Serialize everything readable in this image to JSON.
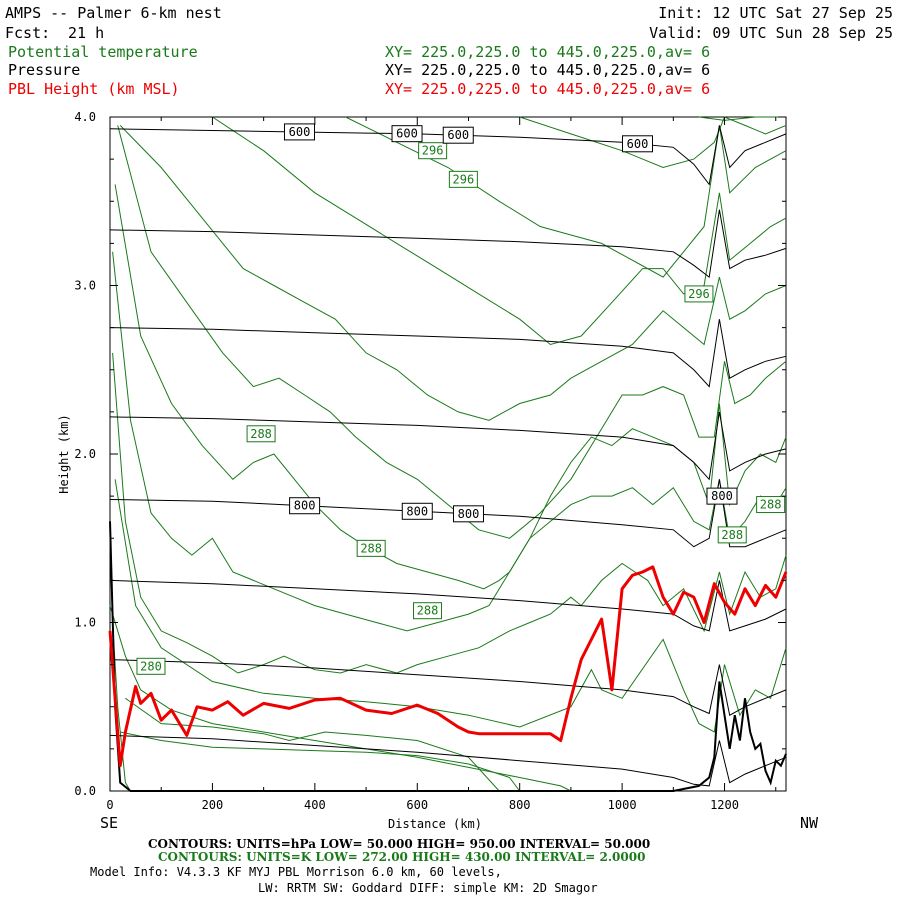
{
  "header": {
    "title": "AMPS -- Palmer 6-km nest",
    "forecast_label": "Fcst:",
    "forecast_hours": "21 h",
    "init": "Init: 12 UTC Sat 27 Sep 25",
    "valid": "Valid: 09 UTC Sun 28 Sep 25",
    "fields": [
      {
        "name": "Potential temperature",
        "xy": "XY= 225.0,225.0 to 445.0,225.0,av=  6",
        "color": "#1a7a1a"
      },
      {
        "name": "Pressure",
        "xy": "XY= 225.0,225.0 to 445.0,225.0,av=  6",
        "color": "#000000"
      },
      {
        "name": "PBL Height (km MSL)",
        "xy": "XY= 225.0,225.0 to 445.0,225.0,av=  6",
        "color": "#ee0000"
      }
    ]
  },
  "footer": {
    "pressure_contours": "CONTOURS:  UNITS=hPa  LOW=  50.000       HIGH=  950.00       INTERVAL=   50.000",
    "theta_contours": "CONTOURS:  UNITS=K  LOW=  272.00       HIGH=  430.00       INTERVAL=   2.0000",
    "model_info_1": "Model Info: V4.3.3   KF      MYJ PBL  Morrison            6.0 km,  60 levels,",
    "model_info_2": "LW: RRTM SW: Goddard DIFF: simple KM: 2D Smagor"
  },
  "chart_data": {
    "type": "line",
    "xlabel": "Distance (km)",
    "ylabel": "Height (km)",
    "x_end_labels": {
      "left": "SE",
      "right": "NW"
    },
    "xlim": [
      0,
      1320
    ],
    "ylim": [
      0.0,
      4.0
    ],
    "xticks": [
      0,
      200,
      400,
      600,
      800,
      1000,
      1200
    ],
    "yticks": [
      "0.0",
      "1.0",
      "2.0",
      "3.0",
      "4.0"
    ],
    "colors": {
      "theta": "#1a7a1a",
      "pressure": "#000000",
      "pbl": "#ee0000",
      "terrain": "#000000"
    },
    "series": [
      {
        "name": "PBL Height (km MSL)",
        "x": [
          0,
          20,
          30,
          50,
          60,
          80,
          100,
          120,
          150,
          170,
          200,
          230,
          260,
          300,
          350,
          400,
          450,
          500,
          550,
          600,
          640,
          680,
          700,
          720,
          760,
          800,
          860,
          880,
          900,
          920,
          960,
          980,
          1000,
          1020,
          1040,
          1060,
          1080,
          1100,
          1120,
          1140,
          1160,
          1180,
          1200,
          1220,
          1240,
          1260,
          1280,
          1300,
          1320
        ],
        "y": [
          0.95,
          0.15,
          0.35,
          0.62,
          0.52,
          0.58,
          0.42,
          0.48,
          0.33,
          0.5,
          0.48,
          0.53,
          0.45,
          0.52,
          0.49,
          0.54,
          0.55,
          0.48,
          0.46,
          0.51,
          0.46,
          0.38,
          0.35,
          0.34,
          0.34,
          0.34,
          0.34,
          0.3,
          0.55,
          0.78,
          1.02,
          0.6,
          1.2,
          1.28,
          1.3,
          1.33,
          1.15,
          1.05,
          1.18,
          1.15,
          1.0,
          1.23,
          1.12,
          1.05,
          1.2,
          1.1,
          1.22,
          1.15,
          1.3
        ]
      }
    ],
    "pressure_contours": [
      {
        "level": 600,
        "x": [
          0,
          200,
          400,
          600,
          800,
          1000,
          1100,
          1140,
          1170,
          1190,
          1210,
          1240,
          1280,
          1320
        ],
        "y": [
          3.93,
          3.92,
          3.91,
          3.9,
          3.88,
          3.85,
          3.82,
          3.72,
          3.6,
          3.95,
          3.7,
          3.8,
          3.85,
          3.9
        ],
        "labels_x": [
          370,
          580,
          680,
          1030
        ]
      },
      {
        "level": 650,
        "x": [
          0,
          200,
          400,
          600,
          800,
          1000,
          1100,
          1140,
          1170,
          1190,
          1210,
          1240,
          1280,
          1320
        ],
        "y": [
          3.33,
          3.32,
          3.3,
          3.28,
          3.26,
          3.23,
          3.2,
          3.12,
          3.05,
          3.45,
          3.1,
          3.15,
          3.18,
          3.22
        ],
        "labels_x": []
      },
      {
        "level": 700,
        "x": [
          0,
          200,
          400,
          600,
          800,
          1000,
          1100,
          1140,
          1170,
          1190,
          1210,
          1240,
          1280,
          1320
        ],
        "y": [
          2.75,
          2.74,
          2.72,
          2.7,
          2.68,
          2.64,
          2.6,
          2.5,
          2.4,
          2.8,
          2.45,
          2.5,
          2.55,
          2.58
        ],
        "labels_x": []
      },
      {
        "level": 750,
        "x": [
          0,
          200,
          400,
          600,
          800,
          1000,
          1100,
          1140,
          1170,
          1190,
          1210,
          1240,
          1280,
          1320
        ],
        "y": [
          2.22,
          2.21,
          2.19,
          2.17,
          2.14,
          2.1,
          2.05,
          1.95,
          1.85,
          2.25,
          1.9,
          1.95,
          2.0,
          2.03
        ],
        "labels_x": []
      },
      {
        "level": 800,
        "x": [
          0,
          200,
          400,
          600,
          800,
          1000,
          1100,
          1140,
          1170,
          1190,
          1210,
          1240,
          1280,
          1320
        ],
        "y": [
          1.73,
          1.72,
          1.69,
          1.66,
          1.63,
          1.58,
          1.55,
          1.45,
          1.5,
          1.85,
          1.45,
          1.45,
          1.5,
          1.55
        ],
        "labels_x": [
          380,
          600,
          700,
          1195
        ]
      },
      {
        "level": 850,
        "x": [
          0,
          200,
          400,
          600,
          800,
          1000,
          1100,
          1140,
          1170,
          1190,
          1210,
          1240,
          1280,
          1320
        ],
        "y": [
          1.25,
          1.23,
          1.2,
          1.17,
          1.13,
          1.08,
          1.05,
          0.98,
          0.95,
          1.25,
          0.95,
          0.98,
          1.02,
          1.08
        ],
        "labels_x": []
      },
      {
        "level": 900,
        "x": [
          0,
          200,
          400,
          600,
          800,
          1000,
          1100,
          1140,
          1170,
          1190,
          1210,
          1240,
          1280,
          1320
        ],
        "y": [
          0.78,
          0.76,
          0.73,
          0.69,
          0.65,
          0.6,
          0.56,
          0.5,
          0.46,
          0.75,
          0.45,
          0.5,
          0.55,
          0.6
        ],
        "labels_x": []
      },
      {
        "level": 950,
        "x": [
          0,
          200,
          400,
          600,
          800,
          1000,
          1100,
          1140,
          1170,
          1190,
          1210,
          1240,
          1280,
          1320
        ],
        "y": [
          0.33,
          0.31,
          0.27,
          0.23,
          0.18,
          0.13,
          0.08,
          0.04,
          0.03,
          0.3,
          0.05,
          0.1,
          0.15,
          0.2
        ],
        "labels_x": []
      }
    ],
    "terrain": {
      "x": [
        0,
        10,
        20,
        40,
        100,
        1100,
        1150,
        1170,
        1180,
        1190,
        1200,
        1210,
        1220,
        1230,
        1240,
        1250,
        1260,
        1270,
        1280,
        1290,
        1300,
        1310,
        1320
      ],
      "y": [
        1.6,
        0.5,
        0.05,
        0.0,
        0.0,
        0.0,
        0.03,
        0.08,
        0.2,
        0.65,
        0.45,
        0.25,
        0.45,
        0.3,
        0.55,
        0.35,
        0.25,
        0.28,
        0.12,
        0.05,
        0.18,
        0.15,
        0.22
      ]
    },
    "theta_contours": [
      {
        "x": [
          0,
          5,
          15,
          30,
          40
        ],
        "y": [
          1.5,
          1.0,
          0.5,
          0.05,
          0.0
        ]
      },
      {
        "x": [
          0,
          30,
          60,
          120,
          200,
          300,
          400,
          500,
          600,
          700,
          800,
          880,
          900
        ],
        "y": [
          1.1,
          0.8,
          0.6,
          0.48,
          0.4,
          0.35,
          0.3,
          0.25,
          0.2,
          0.14,
          0.08,
          0.03,
          0.0
        ]
      },
      {
        "x": [
          20,
          100,
          200,
          300,
          400,
          500,
          600,
          700,
          780,
          800
        ],
        "y": [
          0.35,
          0.3,
          0.26,
          0.25,
          0.24,
          0.23,
          0.21,
          0.16,
          0.08,
          0.0
        ]
      },
      {
        "x": [
          30,
          100,
          200,
          300,
          350,
          420,
          500,
          600,
          700,
          760
        ],
        "y": [
          0.55,
          0.4,
          0.38,
          0.34,
          0.3,
          0.35,
          0.33,
          0.3,
          0.2,
          0.0
        ]
      },
      {
        "x": [
          10,
          50,
          100,
          200,
          300,
          400,
          500,
          600,
          700,
          800,
          900,
          940,
          960,
          1000,
          1080,
          1120,
          1150,
          1180,
          1200,
          1230,
          1260,
          1290,
          1320
        ],
        "y": [
          1.85,
          1.1,
          0.85,
          0.65,
          0.58,
          0.55,
          0.53,
          0.5,
          0.45,
          0.38,
          0.5,
          0.72,
          0.6,
          0.55,
          0.9,
          0.6,
          0.4,
          0.35,
          0.75,
          0.45,
          0.6,
          0.55,
          0.85
        ]
      },
      {
        "x": [
          5,
          30,
          60,
          100,
          150,
          200,
          250,
          300,
          340,
          400,
          450,
          500,
          560,
          600,
          660,
          720,
          780,
          820,
          860,
          900,
          920,
          960,
          1000,
          1050,
          1080,
          1120,
          1160,
          1190,
          1210,
          1240,
          1270,
          1300,
          1320
        ],
        "y": [
          2.6,
          1.6,
          1.15,
          0.95,
          0.88,
          0.8,
          0.7,
          0.75,
          0.8,
          0.72,
          0.7,
          0.75,
          0.7,
          0.75,
          0.8,
          0.85,
          0.95,
          1.0,
          1.05,
          1.15,
          1.1,
          1.25,
          1.35,
          1.25,
          1.1,
          1.2,
          0.95,
          1.3,
          1.05,
          1.3,
          1.15,
          1.2,
          1.4
        ]
      },
      {
        "x": [
          5,
          40,
          80,
          120,
          160,
          200,
          240,
          280,
          320,
          360,
          400,
          460,
          520,
          580,
          640,
          700,
          740,
          780,
          820,
          860,
          900,
          940,
          980,
          1020,
          1060,
          1100,
          1140,
          1170,
          1190,
          1210,
          1240,
          1270,
          1300,
          1320
        ],
        "y": [
          3.2,
          2.2,
          1.65,
          1.5,
          1.4,
          1.5,
          1.3,
          1.25,
          1.2,
          1.15,
          1.1,
          1.05,
          1.0,
          0.95,
          1.0,
          1.05,
          1.1,
          1.3,
          1.5,
          1.6,
          1.7,
          1.75,
          1.75,
          1.8,
          1.7,
          1.8,
          1.6,
          1.55,
          1.85,
          1.5,
          1.6,
          1.75,
          1.7,
          1.8
        ]
      },
      {
        "x": [
          10,
          60,
          120,
          180,
          240,
          280,
          320,
          360,
          400,
          450,
          500,
          560,
          620,
          680,
          730,
          760,
          780,
          820,
          860,
          900,
          940,
          980,
          1020,
          1060,
          1100,
          1140,
          1170,
          1190,
          1210,
          1240,
          1270,
          1300,
          1320
        ],
        "y": [
          3.6,
          2.7,
          2.3,
          2.05,
          1.85,
          1.95,
          2.0,
          1.85,
          1.7,
          1.55,
          1.45,
          1.35,
          1.3,
          1.25,
          1.2,
          1.25,
          1.3,
          1.5,
          1.75,
          1.95,
          2.1,
          2.05,
          2.15,
          2.1,
          2.05,
          1.95,
          1.7,
          2.3,
          1.7,
          1.9,
          2.0,
          1.95,
          2.1
        ]
      },
      {
        "x": [
          15,
          80,
          150,
          220,
          280,
          330,
          380,
          430,
          480,
          540,
          600,
          660,
          720,
          780,
          840,
          900,
          960,
          1000,
          1040,
          1080,
          1120,
          1150,
          1180,
          1200,
          1220,
          1250,
          1280,
          1320
        ],
        "y": [
          3.95,
          3.2,
          2.9,
          2.6,
          2.4,
          2.45,
          2.35,
          2.25,
          2.1,
          1.95,
          1.85,
          1.7,
          1.55,
          1.5,
          1.65,
          1.85,
          2.15,
          2.35,
          2.35,
          2.4,
          2.35,
          2.1,
          2.1,
          2.55,
          2.3,
          2.35,
          2.45,
          2.55
        ]
      },
      {
        "x": [
          20,
          100,
          180,
          260,
          320,
          380,
          440,
          500,
          560,
          620,
          680,
          740,
          800,
          860,
          900,
          960,
          1020,
          1080,
          1120,
          1160,
          1190,
          1210,
          1240,
          1280,
          1320
        ],
        "y": [
          3.95,
          3.7,
          3.4,
          3.1,
          3.0,
          2.9,
          2.8,
          2.6,
          2.5,
          2.35,
          2.25,
          2.2,
          2.3,
          2.35,
          2.45,
          2.55,
          2.65,
          2.85,
          2.75,
          2.65,
          3.05,
          2.8,
          2.85,
          2.95,
          3.0
        ]
      },
      {
        "x": [
          200,
          300,
          400,
          480,
          560,
          640,
          720,
          800,
          860,
          920,
          980,
          1040,
          1080,
          1120,
          1160,
          1190,
          1210,
          1250,
          1290,
          1320
        ],
        "y": [
          4.0,
          3.8,
          3.55,
          3.4,
          3.25,
          3.1,
          2.95,
          2.8,
          2.65,
          2.7,
          2.9,
          3.1,
          3.1,
          2.95,
          3.0,
          3.55,
          3.15,
          3.25,
          3.35,
          3.4
        ]
      },
      {
        "x": [
          460,
          560,
          660,
          760,
          840,
          900,
          960,
          1020,
          1080,
          1120,
          1160,
          1190,
          1210,
          1260,
          1320
        ],
        "y": [
          4.0,
          3.85,
          3.7,
          3.5,
          3.35,
          3.3,
          3.25,
          3.15,
          3.05,
          3.2,
          3.35,
          3.95,
          3.55,
          3.7,
          3.8
        ]
      },
      {
        "x": [
          800,
          900,
          1000,
          1080,
          1140,
          1180,
          1200,
          1240,
          1280,
          1320
        ],
        "y": [
          4.0,
          3.9,
          3.8,
          3.7,
          3.75,
          3.85,
          4.0,
          3.95,
          3.9,
          3.95
        ]
      },
      {
        "x": [
          1150,
          1200,
          1260,
          1320
        ],
        "y": [
          4.0,
          3.98,
          4.0,
          4.0
        ]
      }
    ],
    "theta_labels": [
      {
        "text": "280",
        "x": 80,
        "y": 0.74
      },
      {
        "text": "288",
        "x": 295,
        "y": 2.12
      },
      {
        "text": "288",
        "x": 510,
        "y": 1.44
      },
      {
        "text": "288",
        "x": 620,
        "y": 1.07
      },
      {
        "text": "288",
        "x": 1215,
        "y": 1.52
      },
      {
        "text": "288",
        "x": 1290,
        "y": 1.7
      },
      {
        "text": "296",
        "x": 630,
        "y": 3.8
      },
      {
        "text": "296",
        "x": 690,
        "y": 3.63
      },
      {
        "text": "296",
        "x": 1150,
        "y": 2.95
      }
    ]
  }
}
